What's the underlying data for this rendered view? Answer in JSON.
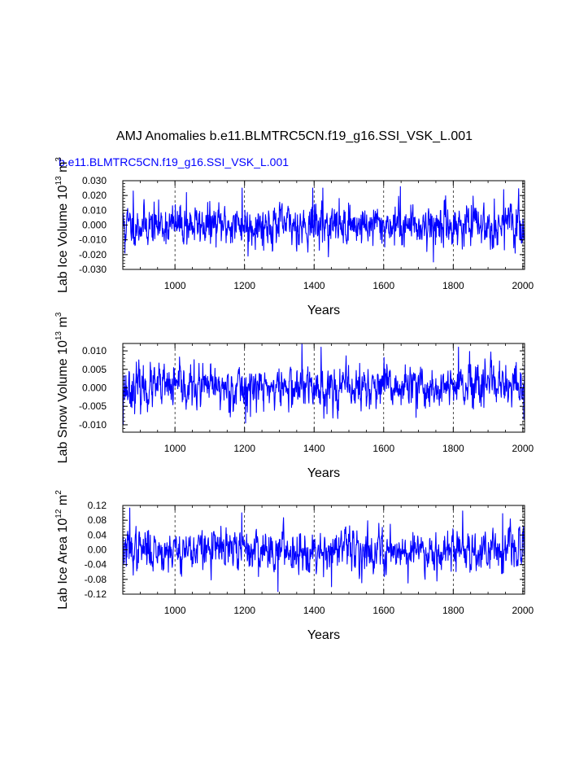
{
  "figure": {
    "title": "AMJ Anomalies b.e11.BLMTRC5CN.f19_g16.SSI_VSK_L.001",
    "legend_label": "b.e11.BLMTRC5CN.f19_g16.SSI_VSK_L.001",
    "colors": {
      "line": "#0000ff",
      "axis": "#000000",
      "grid": "#000000",
      "legend": "#0000ff"
    }
  },
  "chart_data": [
    {
      "type": "line",
      "name": "lab-ice-volume",
      "ylabel_main": "Lab Ice Volume 10",
      "ylabel_exp": "13",
      "ylabel_unit": " m",
      "ylabel_unit_exp": "3",
      "xlabel": "Years",
      "xlim": [
        850,
        2005
      ],
      "ylim": [
        -0.03,
        0.03
      ],
      "xticks": [
        1000,
        1200,
        1400,
        1600,
        1800,
        2000
      ],
      "xtick_labels": [
        "1000",
        "1200",
        "1400",
        "1600",
        "1800",
        "2000"
      ],
      "yticks": [
        -0.03,
        -0.02,
        -0.01,
        0.0,
        0.01,
        0.02,
        0.03
      ],
      "ytick_labels": [
        "-0.030",
        "-0.020",
        "-0.010",
        "0.000",
        "0.010",
        "0.020",
        "0.030"
      ],
      "vgrid": [
        1000,
        1200,
        1400,
        1600,
        1800,
        2000
      ],
      "x_start": 850,
      "x_end": 2005,
      "std": 0.0068,
      "rho": 0.35,
      "seed": 11,
      "peaks": [
        {
          "x": 856,
          "y": -0.019
        },
        {
          "x": 880,
          "y": 0.023
        },
        {
          "x": 1033,
          "y": 0.022
        },
        {
          "x": 1193,
          "y": 0.025
        },
        {
          "x": 1210,
          "y": -0.021
        },
        {
          "x": 1396,
          "y": 0.025
        },
        {
          "x": 1425,
          "y": 0.025
        },
        {
          "x": 1648,
          "y": 0.026
        },
        {
          "x": 1743,
          "y": -0.025
        },
        {
          "x": 1945,
          "y": 0.024
        },
        {
          "x": 1978,
          "y": -0.019
        }
      ]
    },
    {
      "type": "line",
      "name": "lab-snow-volume",
      "ylabel_main": "Lab Snow Volume 10",
      "ylabel_exp": "13",
      "ylabel_unit": " m",
      "ylabel_unit_exp": "3",
      "xlabel": "Years",
      "xlim": [
        850,
        2005
      ],
      "ylim": [
        -0.012,
        0.012
      ],
      "xticks": [
        1000,
        1200,
        1400,
        1600,
        1800,
        2000
      ],
      "xtick_labels": [
        "1000",
        "1200",
        "1400",
        "1600",
        "1800",
        "2000"
      ],
      "yticks": [
        -0.01,
        -0.005,
        0.0,
        0.005,
        0.01
      ],
      "ytick_labels": [
        "-0.010",
        "-0.005",
        "0.000",
        "0.005",
        "0.010"
      ],
      "vgrid": [
        1000,
        1200,
        1400,
        1600,
        1800,
        2000
      ],
      "x_start": 850,
      "x_end": 2005,
      "std": 0.0029,
      "rho": 0.4,
      "seed": 23,
      "peaks": [
        {
          "x": 851,
          "y": -0.01
        },
        {
          "x": 1365,
          "y": 0.0118
        },
        {
          "x": 1420,
          "y": 0.011
        },
        {
          "x": 1815,
          "y": 0.011
        },
        {
          "x": 1203,
          "y": -0.0095
        },
        {
          "x": 1693,
          "y": -0.008
        },
        {
          "x": 2003,
          "y": -0.0085
        }
      ]
    },
    {
      "type": "line",
      "name": "lab-ice-area",
      "ylabel_main": "Lab Ice Area 10",
      "ylabel_exp": "12",
      "ylabel_unit": " m",
      "ylabel_unit_exp": "2",
      "xlabel": "Years",
      "xlim": [
        850,
        2005
      ],
      "ylim": [
        -0.12,
        0.12
      ],
      "xticks": [
        1000,
        1200,
        1400,
        1600,
        1800,
        2000
      ],
      "xtick_labels": [
        "1000",
        "1200",
        "1400",
        "1600",
        "1800",
        "2000"
      ],
      "yticks": [
        -0.12,
        -0.08,
        -0.04,
        0.0,
        0.04,
        0.08,
        0.12
      ],
      "ytick_labels": [
        "-0.12",
        "-0.08",
        "-0.04",
        "0.00",
        "0.04",
        "0.08",
        "0.12"
      ],
      "vgrid": [
        1000,
        1200,
        1400,
        1600,
        1800,
        2000
      ],
      "x_start": 850,
      "x_end": 2005,
      "std": 0.028,
      "rho": 0.45,
      "seed": 37,
      "peaks": [
        {
          "x": 870,
          "y": 0.113
        },
        {
          "x": 1192,
          "y": 0.1
        },
        {
          "x": 1296,
          "y": -0.113
        },
        {
          "x": 1827,
          "y": 0.105
        },
        {
          "x": 1942,
          "y": 0.098
        },
        {
          "x": 1450,
          "y": -0.1
        },
        {
          "x": 1670,
          "y": -0.09
        }
      ]
    }
  ]
}
